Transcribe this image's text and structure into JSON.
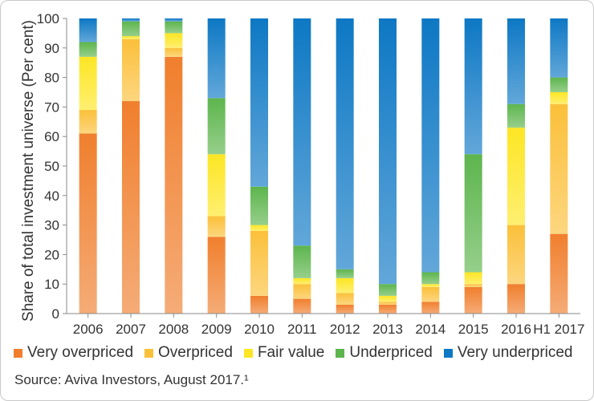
{
  "chart_data": {
    "type": "bar",
    "stacked": true,
    "ylabel": "Share of total investment universe   (Per cent)",
    "ylim": [
      0,
      100
    ],
    "yticks": [
      0,
      10,
      20,
      30,
      40,
      50,
      60,
      70,
      80,
      90,
      100
    ],
    "grid": false,
    "legend_position": "bottom",
    "categories": [
      "2006",
      "2007",
      "2008",
      "2009",
      "2010",
      "2011",
      "2012",
      "2013",
      "2014",
      "2015",
      "2016",
      "H1 2017"
    ],
    "series": [
      {
        "name": "Very overpriced",
        "color": "#f07f2d",
        "values": [
          61,
          72,
          87,
          26,
          6,
          5,
          3,
          3,
          4,
          9,
          10,
          27
        ]
      },
      {
        "name": "Overpriced",
        "color": "#fbc03a",
        "values": [
          8,
          21,
          3,
          7,
          22,
          5,
          4,
          1,
          5,
          1,
          20,
          44
        ]
      },
      {
        "name": "Fair value",
        "color": "#fde624",
        "values": [
          18,
          1,
          5,
          21,
          2,
          2,
          5,
          2,
          1,
          4,
          33,
          4
        ]
      },
      {
        "name": "Underpriced",
        "color": "#5db54d",
        "values": [
          5,
          5,
          4,
          19,
          13,
          11,
          3,
          4,
          4,
          40,
          8,
          5
        ]
      },
      {
        "name": "Very underpriced",
        "color": "#0d78c4",
        "values": [
          8,
          1,
          1,
          27,
          57,
          77,
          85,
          90,
          86,
          46,
          29,
          20
        ]
      }
    ]
  },
  "source": "Source: Aviva Investors, August 2017.¹"
}
